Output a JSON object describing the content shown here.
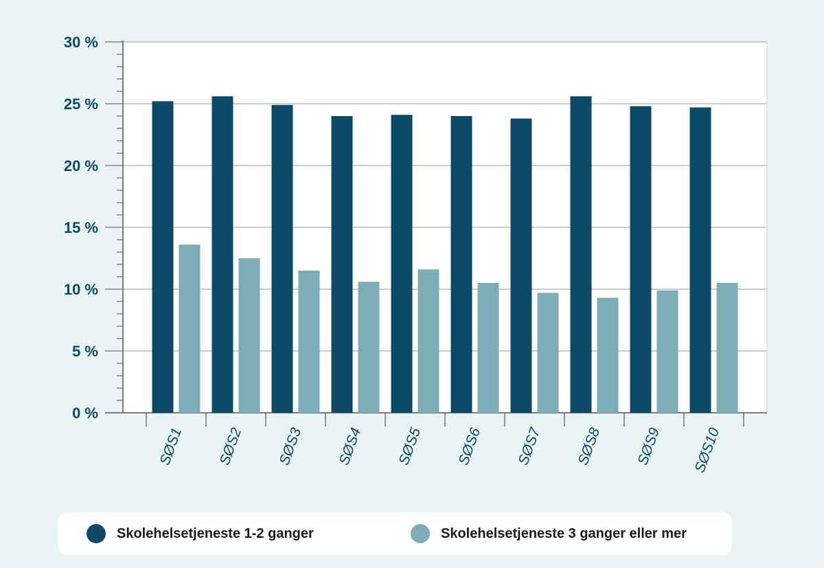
{
  "chart_data": {
    "type": "bar",
    "categories": [
      "SØS1",
      "SØS2",
      "SØS3",
      "SØS4",
      "SØS5",
      "SØS6",
      "SØS7",
      "SØS8",
      "SØS9",
      "SØS10"
    ],
    "series": [
      {
        "name": "Skolehelsetjeneste 1-2 ganger",
        "color": "#0d4a68",
        "values": [
          25.2,
          25.6,
          24.9,
          24.0,
          24.1,
          24.0,
          23.8,
          25.6,
          24.8,
          24.7
        ]
      },
      {
        "name": "Skolehelsetjeneste 3 ganger eller mer",
        "color": "#7eaeb5",
        "values": [
          13.6,
          12.5,
          11.5,
          10.6,
          11.6,
          10.5,
          9.7,
          9.3,
          9.9,
          10.5
        ]
      }
    ],
    "ylim": [
      0,
      30
    ],
    "y_major_ticks": [
      0,
      5,
      10,
      15,
      20,
      25,
      30
    ],
    "y_tick_labels": [
      "0 %",
      "5 %",
      "10 %",
      "15 %",
      "20 %",
      "25 %",
      "30 %"
    ],
    "y_minor_step": 1,
    "grid": true,
    "legend_position": "bottom",
    "colors": {
      "axis_label": "#0d4a68",
      "grid": "#9a9a9a",
      "axis": "#555555",
      "plot_background": "#ffffff",
      "page_background": "#e9f4f4"
    }
  }
}
